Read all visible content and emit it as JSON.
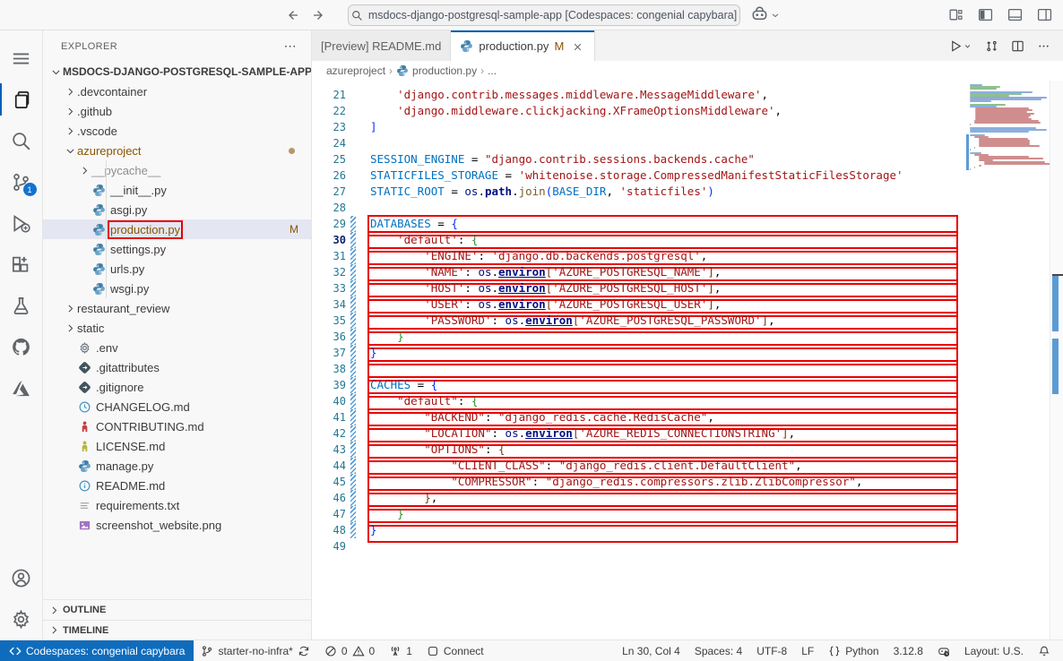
{
  "titlebar": {
    "command_center_text": "msdocs-django-postgresql-sample-app [Codespaces: congenial capybara]"
  },
  "explorer": {
    "title": "EXPLORER",
    "ellipsis": "⋯",
    "tree": [
      {
        "label": "MSDOCS-DJANGO-POSTGRESQL-SAMPLE-APP...",
        "depth": 0,
        "twisty": "down",
        "kind": "root"
      },
      {
        "label": ".devcontainer",
        "depth": 1,
        "twisty": "right",
        "kind": "folder"
      },
      {
        "label": ".github",
        "depth": 1,
        "twisty": "right",
        "kind": "folder"
      },
      {
        "label": ".vscode",
        "depth": 1,
        "twisty": "right",
        "kind": "folder"
      },
      {
        "label": "azureproject",
        "depth": 1,
        "twisty": "down",
        "kind": "folder",
        "modified": true,
        "dot": true
      },
      {
        "label": "__pycache__",
        "depth": 2,
        "twisty": "right",
        "kind": "folder",
        "grayed": true,
        "guide": true
      },
      {
        "label": "__init__.py",
        "depth": 2,
        "icon": "python",
        "guide": true
      },
      {
        "label": "asgi.py",
        "depth": 2,
        "icon": "python",
        "guide": true
      },
      {
        "label": "production.py",
        "depth": 2,
        "icon": "python",
        "guide": true,
        "selected": true,
        "annotated": true,
        "badge": "M",
        "modified": true
      },
      {
        "label": "settings.py",
        "depth": 2,
        "icon": "python",
        "guide": true
      },
      {
        "label": "urls.py",
        "depth": 2,
        "icon": "python",
        "guide": true
      },
      {
        "label": "wsgi.py",
        "depth": 2,
        "icon": "python",
        "guide": true
      },
      {
        "label": "restaurant_review",
        "depth": 1,
        "twisty": "right",
        "kind": "folder"
      },
      {
        "label": "static",
        "depth": 1,
        "twisty": "right",
        "kind": "folder"
      },
      {
        "label": ".env",
        "depth": 1,
        "icon": "gear-file"
      },
      {
        "label": ".gitattributes",
        "depth": 1,
        "icon": "git-file"
      },
      {
        "label": ".gitignore",
        "depth": 1,
        "icon": "git-file"
      },
      {
        "label": "CHANGELOG.md",
        "depth": 1,
        "icon": "clock-file"
      },
      {
        "label": "CONTRIBUTING.md",
        "depth": 1,
        "icon": "person-red"
      },
      {
        "label": "LICENSE.md",
        "depth": 1,
        "icon": "person-yellow"
      },
      {
        "label": "manage.py",
        "depth": 1,
        "icon": "python"
      },
      {
        "label": "README.md",
        "depth": 1,
        "icon": "info-file"
      },
      {
        "label": "requirements.txt",
        "depth": 1,
        "icon": "list-file"
      },
      {
        "label": "screenshot_website.png",
        "depth": 1,
        "icon": "image-file"
      }
    ],
    "sections": [
      "OUTLINE",
      "TIMELINE"
    ]
  },
  "tabs": [
    {
      "label": "[Preview] README.md",
      "active": false
    },
    {
      "label": "production.py",
      "active": true,
      "icon": "python",
      "badge": "M",
      "closable": true
    }
  ],
  "breadcrumbs": [
    {
      "label": "azureproject"
    },
    {
      "label": "production.py",
      "icon": "python"
    },
    {
      "label": "..."
    }
  ],
  "editor": {
    "current_line": 30,
    "lines": [
      {
        "n": 21,
        "seg": [
          [
            "    ",
            "p"
          ],
          [
            "'django.contrib.messages.middleware.MessageMiddleware'",
            "s"
          ],
          [
            ",",
            "p"
          ]
        ]
      },
      {
        "n": 22,
        "seg": [
          [
            "    ",
            "p"
          ],
          [
            "'django.middleware.clickjacking.XFrameOptionsMiddleware'",
            "s"
          ],
          [
            ",",
            "p"
          ]
        ]
      },
      {
        "n": 23,
        "seg": [
          [
            "]",
            "b1"
          ]
        ]
      },
      {
        "n": 24,
        "seg": []
      },
      {
        "n": 25,
        "seg": [
          [
            "SESSION_ENGINE",
            "v"
          ],
          [
            " = ",
            "p"
          ],
          [
            "\"django.contrib.sessions.backends.cache\"",
            "s"
          ]
        ]
      },
      {
        "n": 26,
        "seg": [
          [
            "STATICFILES_STORAGE",
            "v"
          ],
          [
            " = ",
            "p"
          ],
          [
            "'whitenoise.storage.CompressedManifestStaticFilesStorage'",
            "s"
          ]
        ]
      },
      {
        "n": 27,
        "seg": [
          [
            "STATIC_ROOT",
            "v"
          ],
          [
            " = ",
            "p"
          ],
          [
            "os",
            "m"
          ],
          [
            ".",
            "p"
          ],
          [
            "path",
            "mb"
          ],
          [
            ".",
            "p"
          ],
          [
            "join",
            "f"
          ],
          [
            "(",
            "b1"
          ],
          [
            "BASE_DIR",
            "v"
          ],
          [
            ", ",
            "p"
          ],
          [
            "'staticfiles'",
            "s"
          ],
          [
            ")",
            "b1"
          ]
        ]
      },
      {
        "n": 28,
        "seg": []
      },
      {
        "n": 29,
        "box": true,
        "mod": true,
        "seg": [
          [
            "DATABASES",
            "v"
          ],
          [
            " = ",
            "p"
          ],
          [
            "{",
            "b1"
          ]
        ]
      },
      {
        "n": 30,
        "box": true,
        "mod": true,
        "seg": [
          [
            "    ",
            "p"
          ],
          [
            "'default'",
            "s"
          ],
          [
            ": ",
            "p"
          ],
          [
            "{",
            "b2"
          ]
        ]
      },
      {
        "n": 31,
        "box": true,
        "mod": true,
        "seg": [
          [
            "        ",
            "p"
          ],
          [
            "'ENGINE'",
            "s"
          ],
          [
            ": ",
            "p"
          ],
          [
            "'django.db.backends.postgresql'",
            "s"
          ],
          [
            ",",
            "p"
          ]
        ]
      },
      {
        "n": 32,
        "box": true,
        "mod": true,
        "seg": [
          [
            "        ",
            "p"
          ],
          [
            "'NAME'",
            "s"
          ],
          [
            ": ",
            "p"
          ],
          [
            "os",
            "m"
          ],
          [
            ".",
            "p"
          ],
          [
            "environ",
            "mu"
          ],
          [
            "[",
            "b3"
          ],
          [
            "'AZURE_POSTGRESQL_NAME'",
            "s"
          ],
          [
            "]",
            "b3"
          ],
          [
            ",",
            "p"
          ]
        ]
      },
      {
        "n": 33,
        "box": true,
        "mod": true,
        "seg": [
          [
            "        ",
            "p"
          ],
          [
            "'HOST'",
            "s"
          ],
          [
            ": ",
            "p"
          ],
          [
            "os",
            "m"
          ],
          [
            ".",
            "p"
          ],
          [
            "environ",
            "mu"
          ],
          [
            "[",
            "b3"
          ],
          [
            "'AZURE_POSTGRESQL_HOST'",
            "s"
          ],
          [
            "]",
            "b3"
          ],
          [
            ",",
            "p"
          ]
        ]
      },
      {
        "n": 34,
        "box": true,
        "mod": true,
        "seg": [
          [
            "        ",
            "p"
          ],
          [
            "'USER'",
            "s"
          ],
          [
            ": ",
            "p"
          ],
          [
            "os",
            "m"
          ],
          [
            ".",
            "p"
          ],
          [
            "environ",
            "mu"
          ],
          [
            "[",
            "b3"
          ],
          [
            "'AZURE_POSTGRESQL_USER'",
            "s"
          ],
          [
            "]",
            "b3"
          ],
          [
            ",",
            "p"
          ]
        ]
      },
      {
        "n": 35,
        "box": true,
        "mod": true,
        "seg": [
          [
            "        ",
            "p"
          ],
          [
            "'PASSWORD'",
            "s"
          ],
          [
            ": ",
            "p"
          ],
          [
            "os",
            "m"
          ],
          [
            ".",
            "p"
          ],
          [
            "environ",
            "mu"
          ],
          [
            "[",
            "b3"
          ],
          [
            "'AZURE_POSTGRESQL_PASSWORD'",
            "s"
          ],
          [
            "]",
            "b3"
          ],
          [
            ",",
            "p"
          ]
        ]
      },
      {
        "n": 36,
        "box": true,
        "mod": true,
        "seg": [
          [
            "    ",
            "p"
          ],
          [
            "}",
            "b2"
          ]
        ]
      },
      {
        "n": 37,
        "box": true,
        "mod": true,
        "seg": [
          [
            "}",
            "b1"
          ]
        ]
      },
      {
        "n": 38,
        "box": true,
        "mod": true,
        "seg": []
      },
      {
        "n": 39,
        "box": true,
        "mod": true,
        "seg": [
          [
            "CACHES",
            "v"
          ],
          [
            " = ",
            "p"
          ],
          [
            "{",
            "b1"
          ]
        ]
      },
      {
        "n": 40,
        "box": true,
        "mod": true,
        "seg": [
          [
            "    ",
            "p"
          ],
          [
            "\"default\"",
            "s"
          ],
          [
            ": ",
            "p"
          ],
          [
            "{",
            "b2"
          ]
        ]
      },
      {
        "n": 41,
        "box": true,
        "mod": true,
        "seg": [
          [
            "        ",
            "p"
          ],
          [
            "\"BACKEND\"",
            "s"
          ],
          [
            ": ",
            "p"
          ],
          [
            "\"django_redis.cache.RedisCache\"",
            "s"
          ],
          [
            ",",
            "p"
          ]
        ]
      },
      {
        "n": 42,
        "box": true,
        "mod": true,
        "seg": [
          [
            "        ",
            "p"
          ],
          [
            "\"LOCATION\"",
            "s"
          ],
          [
            ": ",
            "p"
          ],
          [
            "os",
            "m"
          ],
          [
            ".",
            "p"
          ],
          [
            "environ",
            "mu"
          ],
          [
            "[",
            "b3"
          ],
          [
            "'AZURE_REDIS_CONNECTIONSTRING'",
            "s"
          ],
          [
            "]",
            "b3"
          ],
          [
            ",",
            "p"
          ]
        ]
      },
      {
        "n": 43,
        "box": true,
        "mod": true,
        "seg": [
          [
            "        ",
            "p"
          ],
          [
            "\"OPTIONS\"",
            "s"
          ],
          [
            ": ",
            "p"
          ],
          [
            "{",
            "b3"
          ]
        ]
      },
      {
        "n": 44,
        "box": true,
        "mod": true,
        "seg": [
          [
            "            ",
            "p"
          ],
          [
            "\"CLIENT_CLASS\"",
            "s"
          ],
          [
            ": ",
            "p"
          ],
          [
            "\"django_redis.client.DefaultClient\"",
            "s"
          ],
          [
            ",",
            "p"
          ]
        ]
      },
      {
        "n": 45,
        "box": true,
        "mod": true,
        "seg": [
          [
            "            ",
            "p"
          ],
          [
            "\"COMPRESSOR\"",
            "s"
          ],
          [
            ": ",
            "p"
          ],
          [
            "\"django_redis.compressors.zlib.ZlibCompressor\"",
            "s"
          ],
          [
            ",",
            "p"
          ]
        ]
      },
      {
        "n": 46,
        "box": true,
        "mod": true,
        "seg": [
          [
            "        ",
            "p"
          ],
          [
            "}",
            "b3"
          ],
          [
            ",",
            "p"
          ]
        ]
      },
      {
        "n": 47,
        "box": true,
        "mod": true,
        "seg": [
          [
            "    ",
            "p"
          ],
          [
            "}",
            "b2"
          ]
        ]
      },
      {
        "n": 48,
        "box": true,
        "mod": true,
        "seg": [
          [
            "}",
            "b1"
          ]
        ]
      },
      {
        "n": 49,
        "seg": []
      }
    ]
  },
  "statusbar": {
    "left": [
      {
        "name": "remote-indicator",
        "accent": true,
        "parts": [
          {
            "icon": "remote"
          },
          {
            "text": "Codespaces: congenial capybara"
          }
        ]
      },
      {
        "name": "branch-status",
        "parts": [
          {
            "icon": "branch"
          },
          {
            "text": "starter-no-infra*"
          },
          {
            "icon": "sync"
          }
        ]
      },
      {
        "name": "problems",
        "parts": [
          {
            "icon": "error"
          },
          {
            "text": "0"
          },
          {
            "icon": "warning"
          },
          {
            "text": "0"
          }
        ]
      },
      {
        "name": "ports",
        "parts": [
          {
            "icon": "tower"
          },
          {
            "text": "1"
          }
        ]
      },
      {
        "name": "connect",
        "parts": [
          {
            "icon": "connect"
          },
          {
            "text": "Connect"
          }
        ]
      }
    ],
    "right": [
      {
        "name": "cursor-position",
        "parts": [
          {
            "text": "Ln 30, Col 4"
          }
        ]
      },
      {
        "name": "indentation",
        "parts": [
          {
            "text": "Spaces: 4"
          }
        ]
      },
      {
        "name": "encoding",
        "parts": [
          {
            "text": "UTF-8"
          }
        ]
      },
      {
        "name": "eol",
        "parts": [
          {
            "text": "LF"
          }
        ]
      },
      {
        "name": "language-mode",
        "parts": [
          {
            "icon": "braces"
          },
          {
            "text": "Python"
          }
        ]
      },
      {
        "name": "python-version",
        "parts": [
          {
            "text": "3.12.8"
          }
        ]
      },
      {
        "name": "codespaces-performance",
        "parts": [
          {
            "icon": "codespaces"
          }
        ]
      },
      {
        "name": "keyboard-layout",
        "parts": [
          {
            "text": "Layout: U.S."
          }
        ]
      },
      {
        "name": "notifications",
        "parts": [
          {
            "icon": "bell"
          }
        ]
      }
    ]
  },
  "colors": {
    "annotation_red": "#e90000",
    "accent_blue": "#0f6cbd",
    "active_tab_border": "#005fb8",
    "modified_badge": "#895503",
    "overview_modified": "#5b9bd5",
    "string": "#a31515",
    "variable": "#0070c1"
  }
}
